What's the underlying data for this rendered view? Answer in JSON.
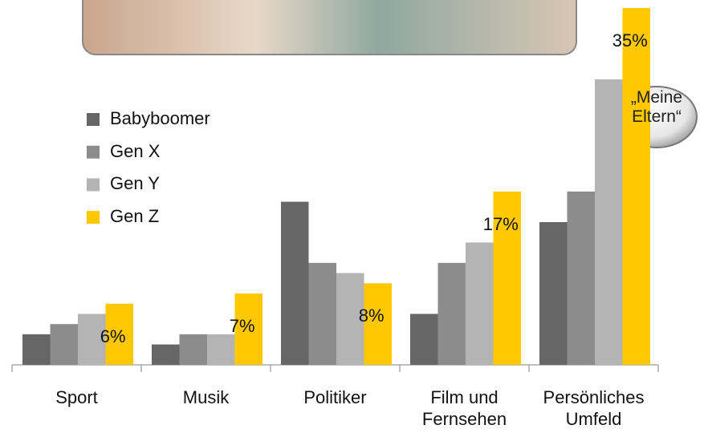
{
  "chart_data": {
    "type": "bar",
    "categories": [
      "Sport",
      "Musik",
      "Politiker",
      "Film und Fernsehen",
      "Persönliches Umfeld"
    ],
    "series": [
      {
        "name": "Babyboomer",
        "color": "#666666",
        "values": [
          3,
          2,
          16,
          5,
          14
        ]
      },
      {
        "name": "Gen X",
        "color": "#8c8c8c",
        "values": [
          4,
          3,
          10,
          10,
          17
        ]
      },
      {
        "name": "Gen Y",
        "color": "#b4b4b4",
        "values": [
          5,
          3,
          9,
          12,
          28
        ]
      },
      {
        "name": "Gen Z",
        "color": "#ffc800",
        "values": [
          6,
          7,
          8,
          17,
          35
        ],
        "value_labels": [
          "6%",
          "7%",
          "8%",
          "17%",
          "35%"
        ]
      }
    ],
    "annotation": "„Meine Eltern“",
    "ylim": [
      0,
      35
    ]
  }
}
